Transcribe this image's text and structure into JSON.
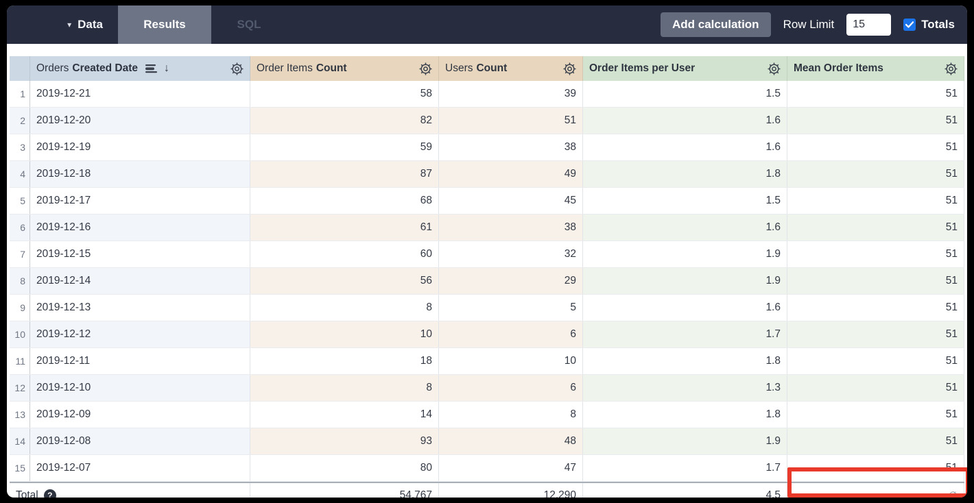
{
  "topbar": {
    "data_label": "Data",
    "tabs": [
      {
        "label": "Results",
        "active": true
      },
      {
        "label": "SQL",
        "active": false
      }
    ],
    "add_calculation_label": "Add calculation",
    "row_limit_label": "Row Limit",
    "row_limit_value": "15",
    "totals_label": "Totals",
    "totals_checked": true
  },
  "table": {
    "columns": [
      {
        "name_regular": "Orders",
        "name_bold": "Created Date",
        "type": "dimension",
        "sorted_desc": true
      },
      {
        "name_regular": "Order Items",
        "name_bold": "Count",
        "type": "measure"
      },
      {
        "name_regular": "Users",
        "name_bold": "Count",
        "type": "measure"
      },
      {
        "name_regular": "",
        "name_bold": "Order Items per User",
        "type": "table_calculation"
      },
      {
        "name_regular": "",
        "name_bold": "Mean Order Items",
        "type": "table_calculation"
      }
    ],
    "rows": [
      {
        "n": 1,
        "date": "2019-12-21",
        "order_items": "58",
        "users": "39",
        "per_user": "1.5",
        "mean": "51"
      },
      {
        "n": 2,
        "date": "2019-12-20",
        "order_items": "82",
        "users": "51",
        "per_user": "1.6",
        "mean": "51"
      },
      {
        "n": 3,
        "date": "2019-12-19",
        "order_items": "59",
        "users": "38",
        "per_user": "1.6",
        "mean": "51"
      },
      {
        "n": 4,
        "date": "2019-12-18",
        "order_items": "87",
        "users": "49",
        "per_user": "1.8",
        "mean": "51"
      },
      {
        "n": 5,
        "date": "2019-12-17",
        "order_items": "68",
        "users": "45",
        "per_user": "1.5",
        "mean": "51"
      },
      {
        "n": 6,
        "date": "2019-12-16",
        "order_items": "61",
        "users": "38",
        "per_user": "1.6",
        "mean": "51"
      },
      {
        "n": 7,
        "date": "2019-12-15",
        "order_items": "60",
        "users": "32",
        "per_user": "1.9",
        "mean": "51"
      },
      {
        "n": 8,
        "date": "2019-12-14",
        "order_items": "56",
        "users": "29",
        "per_user": "1.9",
        "mean": "51"
      },
      {
        "n": 9,
        "date": "2019-12-13",
        "order_items": "8",
        "users": "5",
        "per_user": "1.6",
        "mean": "51"
      },
      {
        "n": 10,
        "date": "2019-12-12",
        "order_items": "10",
        "users": "6",
        "per_user": "1.7",
        "mean": "51"
      },
      {
        "n": 11,
        "date": "2019-12-11",
        "order_items": "18",
        "users": "10",
        "per_user": "1.8",
        "mean": "51"
      },
      {
        "n": 12,
        "date": "2019-12-10",
        "order_items": "8",
        "users": "6",
        "per_user": "1.3",
        "mean": "51"
      },
      {
        "n": 13,
        "date": "2019-12-09",
        "order_items": "14",
        "users": "8",
        "per_user": "1.8",
        "mean": "51"
      },
      {
        "n": 14,
        "date": "2019-12-08",
        "order_items": "93",
        "users": "48",
        "per_user": "1.9",
        "mean": "51"
      },
      {
        "n": 15,
        "date": "2019-12-07",
        "order_items": "80",
        "users": "47",
        "per_user": "1.7",
        "mean": "51"
      }
    ],
    "total": {
      "label": "Total",
      "help_icon": "?",
      "order_items": "54,767",
      "users": "12,290",
      "per_user": "4.5",
      "mean": "∅"
    }
  },
  "annotation": {
    "type": "highlight-box",
    "color": "#e8392b",
    "target": "total-mean-order-items-cell"
  },
  "colors": {
    "topbar_bg": "#272c3e",
    "active_tab_bg": "#6d7485",
    "checkbox_accent": "#1a73e8",
    "dimension_header_bg": "#ccd8e4",
    "measure_header_bg": "#e8d7be",
    "calculation_header_bg": "#d2e4cf"
  }
}
